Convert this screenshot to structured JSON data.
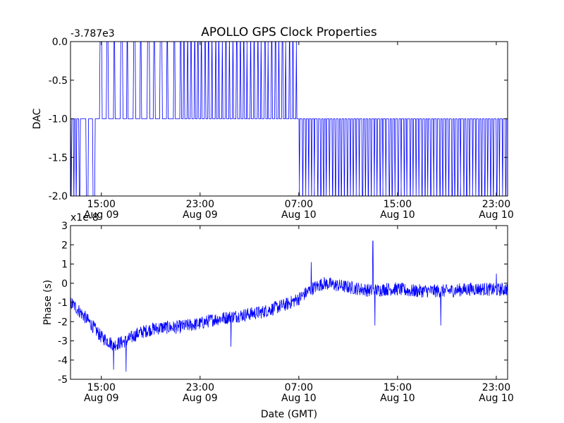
{
  "figure": {
    "title": "APOLLO GPS Clock Properties",
    "xlabel": "Date (GMT)"
  },
  "chart_data": [
    {
      "type": "line",
      "name": "dac-panel",
      "ylabel": "DAC",
      "offset_text": "-3.787e3",
      "x_range": [
        "2010-08-09 12:30",
        "2010-08-10 23:55"
      ],
      "ylim": [
        -2.0,
        0.0
      ],
      "y_ticks": [
        0.0,
        -0.5,
        -1.0,
        -1.5,
        -2.0
      ],
      "y_tick_labels": [
        "0.0",
        "-0.5",
        "-1.0",
        "-1.5",
        "-2.0"
      ],
      "x_tick_labels": [
        {
          "time": "15:00",
          "date": "Aug 09"
        },
        {
          "time": "23:00",
          "date": "Aug 09"
        },
        {
          "time": "07:00",
          "date": "Aug 10"
        },
        {
          "time": "15:00",
          "date": "Aug 10"
        },
        {
          "time": "23:00",
          "date": "Aug 10"
        }
      ],
      "color": "#0000ff",
      "segments": [
        {
          "start": "2010-08-09 12:30",
          "end": "2010-08-09 13:05",
          "baseline": -1.0,
          "spike_to": -2.0,
          "spikes": 3
        },
        {
          "start": "2010-08-09 13:05",
          "end": "2010-08-09 14:50",
          "baseline": -1.0,
          "spike_to": -2.0,
          "spikes": 3
        },
        {
          "start": "2010-08-09 14:50",
          "end": "2010-08-09 21:20",
          "baseline": -1.0,
          "spike_to": 0.0,
          "spikes": 12
        },
        {
          "start": "2010-08-09 21:20",
          "end": "2010-08-10 07:00",
          "baseline": -1.0,
          "spike_to": 0.0,
          "spikes": 34
        },
        {
          "start": "2010-08-10 07:00",
          "end": "2010-08-10 23:55",
          "baseline": -1.0,
          "spike_to": -2.0,
          "spikes": 70
        }
      ]
    },
    {
      "type": "line",
      "name": "phase-panel",
      "ylabel": "Phase (s)",
      "offset_text": "x1e-8",
      "x_range": [
        "2010-08-09 12:30",
        "2010-08-10 23:55"
      ],
      "ylim": [
        -5,
        3
      ],
      "y_ticks": [
        3,
        2,
        1,
        0,
        -1,
        -2,
        -3,
        -4,
        -5
      ],
      "y_tick_labels": [
        "3",
        "2",
        "1",
        "0",
        "-1",
        "-2",
        "-3",
        "-4",
        "-5"
      ],
      "x_tick_labels": [
        {
          "time": "15:00",
          "date": "Aug 09"
        },
        {
          "time": "23:00",
          "date": "Aug 09"
        },
        {
          "time": "07:00",
          "date": "Aug 10"
        },
        {
          "time": "15:00",
          "date": "Aug 10"
        },
        {
          "time": "23:00",
          "date": "Aug 10"
        }
      ],
      "color": "#0000ff",
      "trend_x": [
        "2010-08-09 12:30",
        "2010-08-09 13:00",
        "2010-08-09 14:00",
        "2010-08-09 15:00",
        "2010-08-09 16:00",
        "2010-08-09 17:00",
        "2010-08-09 18:00",
        "2010-08-09 19:00",
        "2010-08-09 20:00",
        "2010-08-09 21:00",
        "2010-08-09 22:00",
        "2010-08-09 23:00",
        "2010-08-10 00:00",
        "2010-08-10 01:00",
        "2010-08-10 02:00",
        "2010-08-10 03:00",
        "2010-08-10 04:00",
        "2010-08-10 05:00",
        "2010-08-10 06:00",
        "2010-08-10 07:00",
        "2010-08-10 08:00",
        "2010-08-10 09:00",
        "2010-08-10 10:00",
        "2010-08-10 11:00",
        "2010-08-10 12:00",
        "2010-08-10 13:00",
        "2010-08-10 14:00",
        "2010-08-10 15:00",
        "2010-08-10 16:00",
        "2010-08-10 17:00",
        "2010-08-10 18:00",
        "2010-08-10 19:00",
        "2010-08-10 20:00",
        "2010-08-10 21:00",
        "2010-08-10 22:00",
        "2010-08-10 23:00",
        "2010-08-10 23:55"
      ],
      "trend_y": [
        -1.0,
        -1.3,
        -2.0,
        -2.8,
        -3.2,
        -3.0,
        -2.6,
        -2.4,
        -2.3,
        -2.3,
        -2.2,
        -2.1,
        -1.9,
        -1.8,
        -1.7,
        -1.6,
        -1.5,
        -1.3,
        -1.1,
        -0.8,
        -0.3,
        0.0,
        -0.1,
        -0.2,
        -0.3,
        -0.4,
        -0.3,
        -0.3,
        -0.4,
        -0.4,
        -0.4,
        -0.4,
        -0.35,
        -0.3,
        -0.3,
        -0.35,
        -0.3
      ],
      "noise_amplitude": 0.35,
      "spikes": [
        {
          "x": "2010-08-10 13:00",
          "y": 2.2
        },
        {
          "x": "2010-08-10 13:10",
          "y": -2.2
        },
        {
          "x": "2010-08-10 08:00",
          "y": 1.1
        },
        {
          "x": "2010-08-10 01:30",
          "y": -3.3
        },
        {
          "x": "2010-08-09 17:00",
          "y": -4.6
        },
        {
          "x": "2010-08-09 16:00",
          "y": -4.5
        },
        {
          "x": "2010-08-10 18:30",
          "y": -2.2
        },
        {
          "x": "2010-08-10 23:00",
          "y": 0.5
        }
      ]
    }
  ]
}
